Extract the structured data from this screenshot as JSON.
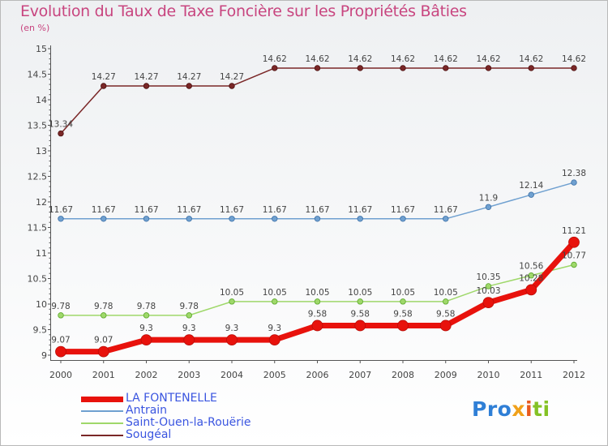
{
  "header": {
    "title": "Evolution du Taux de Taxe Foncière sur les Propriétés Bâties",
    "unit": "(en %)"
  },
  "branding": {
    "part1": "Pro",
    "part2": "x",
    "part3": "i",
    "part4": "ti"
  },
  "chart_data": {
    "type": "line",
    "title": "Evolution du Taux de Taxe Foncière sur les Propriétés Bâties",
    "ylabel": "(en %)",
    "xlabel": "",
    "ylim": [
      9,
      15
    ],
    "ytick_labels": [
      "9",
      "9.5",
      "10",
      "10.5",
      "11",
      "11.5",
      "12",
      "12.5",
      "13",
      "13.5",
      "14",
      "14.5",
      "15"
    ],
    "categories": [
      "2000",
      "2001",
      "2002",
      "2003",
      "2004",
      "2005",
      "2006",
      "2007",
      "2008",
      "2009",
      "2010",
      "2011",
      "2012"
    ],
    "series": [
      {
        "name": "LA FONTENELLE",
        "color": "#e8120c",
        "values": [
          9.07,
          9.07,
          9.3,
          9.3,
          9.3,
          9.3,
          9.58,
          9.58,
          9.58,
          9.58,
          10.03,
          10.28,
          11.21
        ],
        "labels": [
          "9.07",
          "9.07",
          "9.3",
          "9.3",
          "9.3",
          "9.3",
          "9.58",
          "9.58",
          "9.58",
          "9.58",
          "10.03",
          "10.28",
          "11.21"
        ]
      },
      {
        "name": "Antrain",
        "color": "#6fa0d0",
        "values": [
          11.67,
          11.67,
          11.67,
          11.67,
          11.67,
          11.67,
          11.67,
          11.67,
          11.67,
          11.67,
          11.9,
          12.14,
          12.38
        ],
        "labels": [
          "11.67",
          "11.67",
          "11.67",
          "11.67",
          "11.67",
          "11.67",
          "11.67",
          "11.67",
          "11.67",
          "11.67",
          "11.9",
          "12.14",
          "12.38"
        ]
      },
      {
        "name": "Saint-Ouen-la-Rouërie",
        "color": "#9fd86a",
        "values": [
          9.78,
          9.78,
          9.78,
          9.78,
          10.05,
          10.05,
          10.05,
          10.05,
          10.05,
          10.05,
          10.35,
          10.56,
          10.77
        ],
        "labels": [
          "9.78",
          "9.78",
          "9.78",
          "9.78",
          "10.05",
          "10.05",
          "10.05",
          "10.05",
          "10.05",
          "10.05",
          "10.35",
          "10.56",
          "10.77"
        ]
      },
      {
        "name": "Sougéal",
        "color": "#7a2727",
        "values": [
          13.34,
          14.27,
          14.27,
          14.27,
          14.27,
          14.62,
          14.62,
          14.62,
          14.62,
          14.62,
          14.62,
          14.62,
          14.62
        ],
        "labels": [
          "13.34",
          "14.27",
          "14.27",
          "14.27",
          "14.27",
          "14.62",
          "14.62",
          "14.62",
          "14.62",
          "14.62",
          "14.62",
          "14.62",
          "14.62"
        ]
      }
    ],
    "legend_position": "bottom-left",
    "grid": false
  }
}
